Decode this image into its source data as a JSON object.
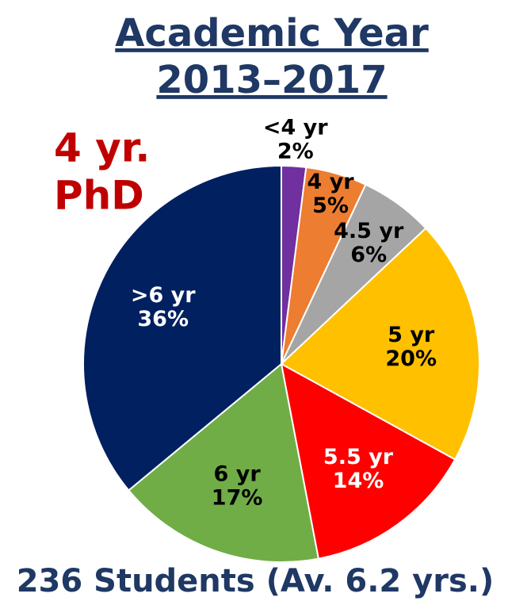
{
  "chart_data": {
    "type": "pie",
    "title": [
      "Academic Year",
      "2013–2017"
    ],
    "annotations": [
      "4 yr.",
      "PhD"
    ],
    "caption": "236 Students (Av. 6.2 yrs.)",
    "categories": [
      "<4 yr",
      "4 yr",
      "4.5 yr",
      "5 yr",
      "5.5 yr",
      "6 yr",
      ">6 yr"
    ],
    "values": [
      2,
      5,
      6,
      20,
      14,
      17,
      36
    ],
    "value_labels": [
      "2%",
      "5%",
      "6%",
      "20%",
      "14%",
      "17%",
      "36%"
    ],
    "colors": [
      "#7030a0",
      "#ed7d31",
      "#a5a5a5",
      "#ffc000",
      "#ff0000",
      "#70ad47",
      "#002060"
    ]
  }
}
